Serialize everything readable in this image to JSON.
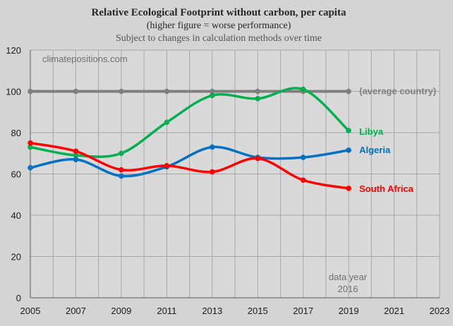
{
  "chart_data": {
    "type": "line",
    "title": "Relative Ecological Footprint without carbon, per capita",
    "subtitle": "(higher figure = worse performance)",
    "subtitle2": "Subject to changes in calculation methods over time",
    "watermark": "climatepositions.com",
    "note_line1": "data year",
    "note_line2": "2016",
    "xlim": [
      2005,
      2023
    ],
    "ylim": [
      0,
      120
    ],
    "x_ticks": [
      2005,
      2007,
      2009,
      2011,
      2013,
      2015,
      2017,
      2019,
      2021,
      2023
    ],
    "y_ticks": [
      0,
      20,
      40,
      60,
      80,
      100,
      120
    ],
    "grid": true,
    "x": [
      2005,
      2007,
      2009,
      2011,
      2013,
      2015,
      2017,
      2019
    ],
    "series": [
      {
        "name": "(average country)",
        "color": "#7f7f7f",
        "values": [
          100,
          100,
          100,
          100,
          100,
          100,
          100,
          100
        ]
      },
      {
        "name": "Libya",
        "color": "#00b050",
        "values": [
          73,
          69,
          70,
          85,
          98,
          96.5,
          101,
          81
        ]
      },
      {
        "name": "Algeria",
        "color": "#0070c0",
        "values": [
          63,
          67,
          59,
          63.5,
          73,
          68,
          68,
          71.5
        ]
      },
      {
        "name": "South Africa",
        "color": "#ff0000",
        "values": [
          75,
          71,
          62,
          64,
          61,
          67.5,
          57,
          53
        ]
      }
    ]
  }
}
